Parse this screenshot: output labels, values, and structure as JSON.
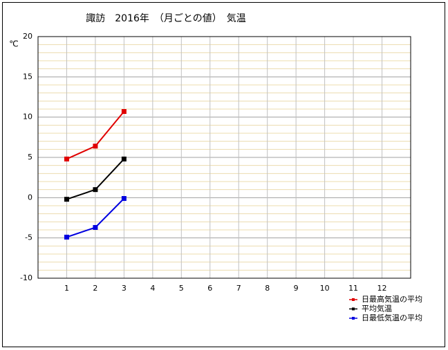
{
  "chart_data": {
    "type": "line",
    "title": "諏訪　2016年　（月ごとの値）　気温",
    "y_label": "℃",
    "x": [
      1,
      2,
      3
    ],
    "xlim": [
      0,
      13
    ],
    "xticks": [
      1,
      2,
      3,
      4,
      5,
      6,
      7,
      8,
      9,
      10,
      11,
      12
    ],
    "ylim": [
      -10,
      20
    ],
    "yticks": [
      -10,
      -5,
      0,
      5,
      10,
      15,
      20
    ],
    "grid": true,
    "series": [
      {
        "name": "日最高気温の平均",
        "color": "#e00000",
        "values": [
          4.8,
          6.4,
          10.7
        ]
      },
      {
        "name": "平均気温",
        "color": "#000000",
        "values": [
          -0.2,
          1.0,
          4.8
        ]
      },
      {
        "name": "日最低気温の平均",
        "color": "#0000e0",
        "values": [
          -4.9,
          -3.7,
          -0.1
        ]
      }
    ]
  }
}
